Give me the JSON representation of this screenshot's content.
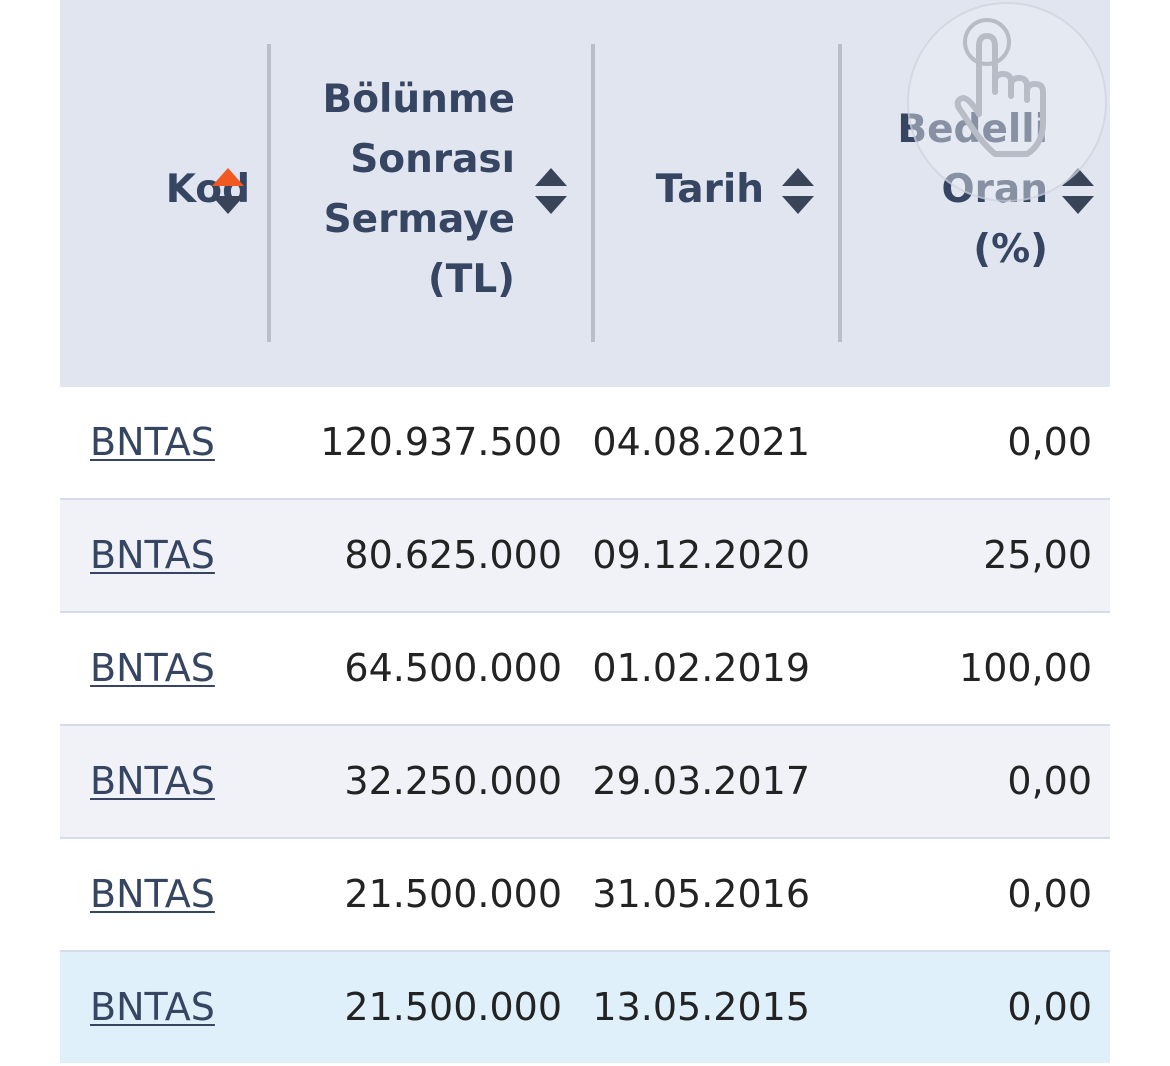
{
  "table": {
    "headers": {
      "kod": "Kod",
      "sermaye": [
        "Bölünme",
        "Sonrası",
        "Sermaye",
        "(TL)"
      ],
      "tarih": "Tarih",
      "oran": [
        "Bedelli",
        "Oran",
        "(%)"
      ]
    },
    "sort_colors": {
      "active": "#f05a22",
      "inactive": "#3a4458"
    },
    "rows": [
      {
        "kod": "BNTAS",
        "sermaye": "120.937.500",
        "tarih": "04.08.2021",
        "oran": "0,00"
      },
      {
        "kod": "BNTAS",
        "sermaye": "80.625.000",
        "tarih": "09.12.2020",
        "oran": "25,00"
      },
      {
        "kod": "BNTAS",
        "sermaye": "64.500.000",
        "tarih": "01.02.2019",
        "oran": "100,00"
      },
      {
        "kod": "BNTAS",
        "sermaye": "32.250.000",
        "tarih": "29.03.2017",
        "oran": "0,00"
      },
      {
        "kod": "BNTAS",
        "sermaye": "21.500.000",
        "tarih": "31.05.2016",
        "oran": "0,00"
      },
      {
        "kod": "BNTAS",
        "sermaye": "21.500.000",
        "tarih": "13.05.2015",
        "oran": "0,00"
      }
    ]
  },
  "overlay": {
    "icon": "tap-hand-icon"
  }
}
